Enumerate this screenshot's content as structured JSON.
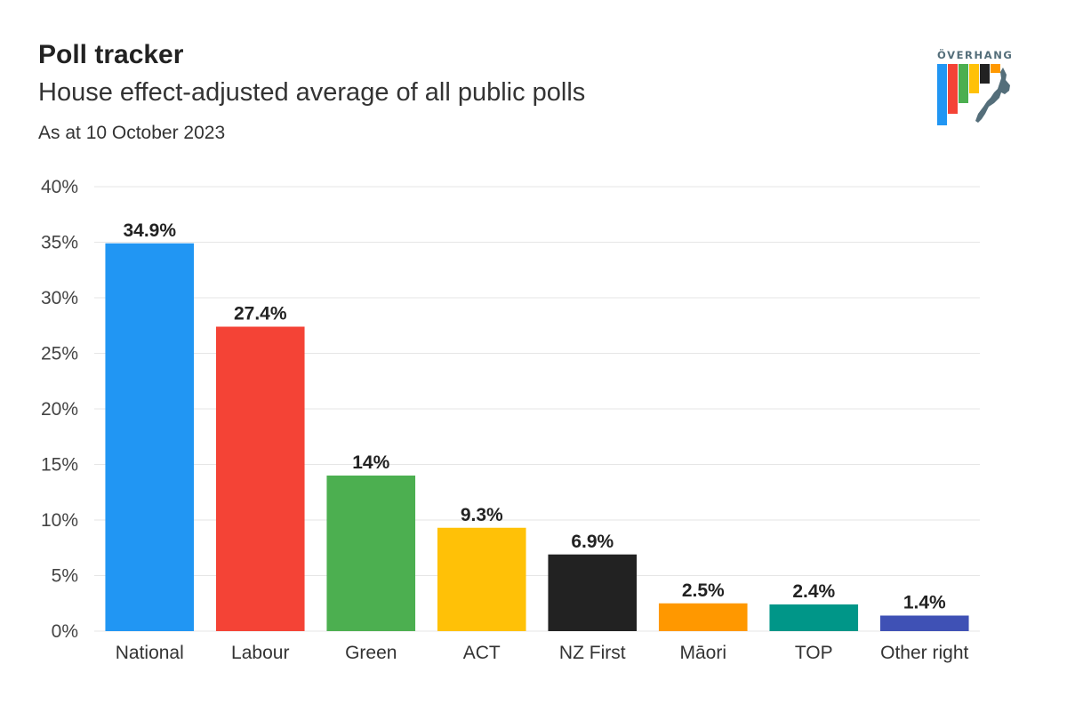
{
  "header": {
    "title": "Poll tracker",
    "subtitle": "House effect-adjusted average of all public polls",
    "date_note": "As at 10 October 2023"
  },
  "logo": {
    "text": "ÖVERHANG",
    "icon": "overhang-logo-icon",
    "colors": [
      "#2196F3",
      "#F44336",
      "#4CAF50",
      "#FFC107",
      "#222222",
      "#FF9800"
    ],
    "map_color": "#546E7A"
  },
  "chart_data": {
    "type": "bar",
    "title": "Poll tracker",
    "subtitle": "House effect-adjusted average of all public polls",
    "xlabel": "",
    "ylabel": "",
    "categories": [
      "National",
      "Labour",
      "Green",
      "ACT",
      "NZ First",
      "Māori",
      "TOP",
      "Other right"
    ],
    "values": [
      34.9,
      27.4,
      14,
      9.3,
      6.9,
      2.5,
      2.4,
      1.4
    ],
    "value_labels": [
      "34.9%",
      "27.4%",
      "14%",
      "9.3%",
      "6.9%",
      "2.5%",
      "2.4%",
      "1.4%"
    ],
    "colors": [
      "#2196F3",
      "#F44336",
      "#4CAF50",
      "#FFC107",
      "#222222",
      "#FF9800",
      "#009688",
      "#3F51B5"
    ],
    "ylim": [
      0,
      40
    ],
    "yticks": [
      0,
      5,
      10,
      15,
      20,
      25,
      30,
      35,
      40
    ],
    "ytick_labels": [
      "0%",
      "5%",
      "10%",
      "15%",
      "20%",
      "25%",
      "30%",
      "35%",
      "40%"
    ],
    "grid": true,
    "legend": "none"
  }
}
